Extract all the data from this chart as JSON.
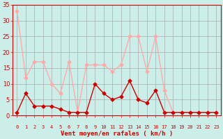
{
  "hours": [
    0,
    1,
    2,
    3,
    4,
    5,
    6,
    7,
    8,
    9,
    10,
    11,
    12,
    13,
    14,
    15,
    16,
    17,
    18,
    19,
    20,
    21,
    22,
    23
  ],
  "vent_moyen": [
    1,
    7,
    3,
    3,
    3,
    2,
    1,
    1,
    1,
    10,
    7,
    5,
    6,
    11,
    5,
    4,
    8,
    1,
    1,
    1,
    1,
    1,
    1,
    1
  ],
  "rafales": [
    33,
    12,
    17,
    17,
    10,
    7,
    17,
    1,
    16,
    16,
    16,
    14,
    16,
    25,
    25,
    14,
    25,
    8,
    1,
    1,
    1,
    1,
    1,
    1
  ],
  "color_moyen": "#cc0000",
  "color_rafales": "#ffaaaa",
  "bg_color": "#cceee8",
  "grid_color": "#aaaaaa",
  "axis_line_color": "#cc0000",
  "xlabel": "Vent moyen/en rafales ( km/h )",
  "xlabel_color": "#cc0000",
  "tick_color": "#cc0000",
  "ylim": [
    0,
    35
  ],
  "yticks": [
    0,
    5,
    10,
    15,
    20,
    25,
    30,
    35
  ],
  "marker": "D",
  "markersize": 2.5,
  "linewidth": 1.0
}
